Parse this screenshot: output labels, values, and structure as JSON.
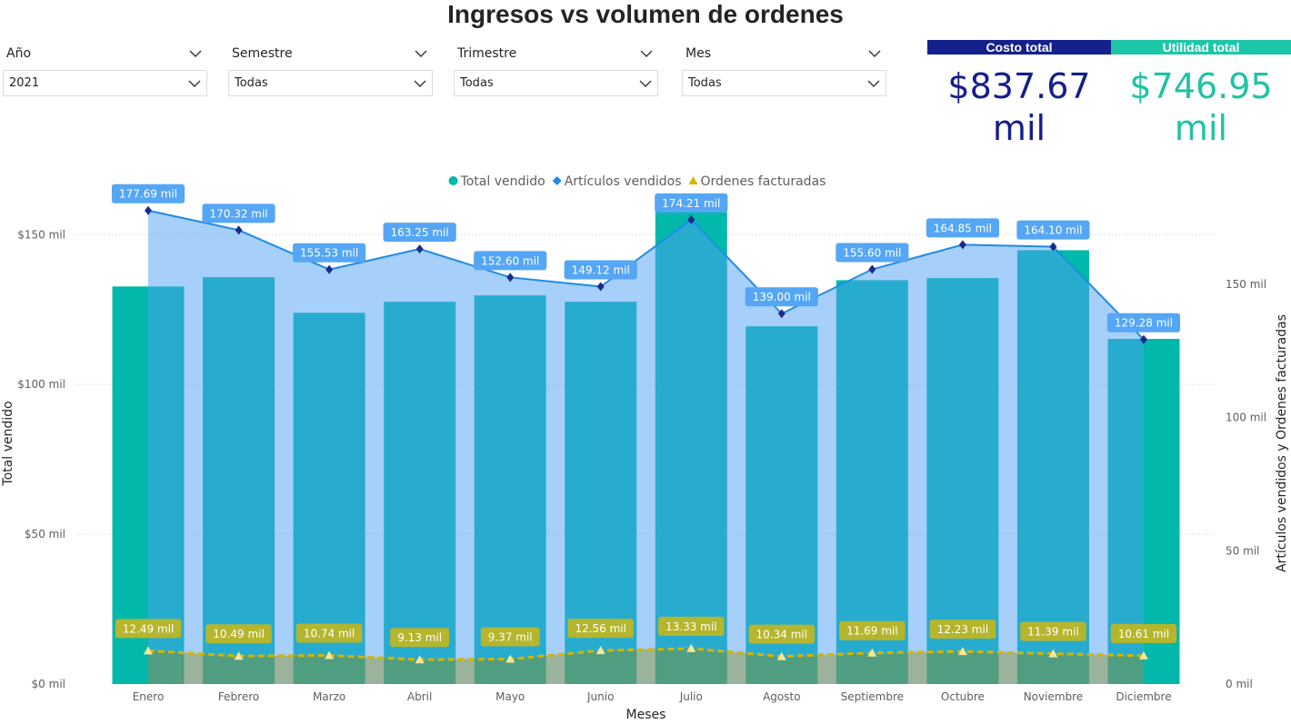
{
  "title": "Ingresos vs volumen de ordenes",
  "slicers": [
    {
      "label": "Año",
      "value": "2021"
    },
    {
      "label": "Semestre",
      "value": "Todas"
    },
    {
      "label": "Trimestre",
      "value": "Todas"
    },
    {
      "label": "Mes",
      "value": "Todas"
    }
  ],
  "cards": [
    {
      "title": "Costo total",
      "value": "$837.67 mil",
      "color": "#151e8c",
      "header_color": "#14208c"
    },
    {
      "title": "Utilidad total",
      "value": "$746.95 mil",
      "color": "#1fc3a4",
      "header_color": "#1ec6a8"
    }
  ],
  "chart_data": {
    "type": "combo",
    "legend_position": "top",
    "x_label": "Meses",
    "y_label": "Total vendido",
    "y2_label": "Artículos vendidos y Ordenes facturadas",
    "grid": true,
    "categories": [
      "Enero",
      "Febrero",
      "Marzo",
      "Abril",
      "Mayo",
      "Junio",
      "Julio",
      "Agosto",
      "Septiembre",
      "Octubre",
      "Noviembre",
      "Diciembre"
    ],
    "ylim": [
      0,
      161
    ],
    "yticks": [
      {
        "value": 0,
        "label": "$0 mil"
      },
      {
        "value": 50,
        "label": "$50 mil"
      },
      {
        "value": 100,
        "label": "$100 mil"
      },
      {
        "value": 150,
        "label": "$150 mil"
      }
    ],
    "y2lim": [
      0,
      181
    ],
    "y2ticks": [
      {
        "value": 0,
        "label": "0 mil"
      },
      {
        "value": 50,
        "label": "50 mil"
      },
      {
        "value": 100,
        "label": "100 mil"
      },
      {
        "value": 150,
        "label": "150 mil"
      }
    ],
    "series": [
      {
        "name": "Total vendido",
        "type": "bar",
        "color": "#01b8aa",
        "values": [
          132.7,
          135.8,
          123.9,
          127.6,
          129.7,
          127.6,
          157.6,
          119.4,
          134.8,
          135.5,
          144.8,
          115.2
        ]
      },
      {
        "name": "Artículos vendidos",
        "type": "area",
        "axis": "y2",
        "color": "#1f8be6",
        "values": [
          177.69,
          170.32,
          155.53,
          163.25,
          152.6,
          149.12,
          174.21,
          139.0,
          155.6,
          164.85,
          164.1,
          129.28
        ],
        "value_labels": [
          "177.69 mil",
          "170.32 mil",
          "155.53 mil",
          "163.25 mil",
          "152.60 mil",
          "149.12 mil",
          "174.21 mil",
          "139.00 mil",
          "155.60 mil",
          "164.85 mil",
          "164.10 mil",
          "129.28 mil"
        ]
      },
      {
        "name": "Ordenes facturadas",
        "type": "dashed-area",
        "axis": "y2",
        "color": "#d4b500",
        "values": [
          12.49,
          10.49,
          10.74,
          9.13,
          9.37,
          12.56,
          13.33,
          10.34,
          11.69,
          12.23,
          11.39,
          10.61
        ],
        "value_labels": [
          "12.49 mil",
          "10.49 mil",
          "10.74 mil",
          "9.13 mil",
          "9.37 mil",
          "12.56 mil",
          "13.33 mil",
          "10.34 mil",
          "11.69 mil",
          "12.23 mil",
          "11.39 mil",
          "10.61 mil"
        ]
      }
    ]
  }
}
